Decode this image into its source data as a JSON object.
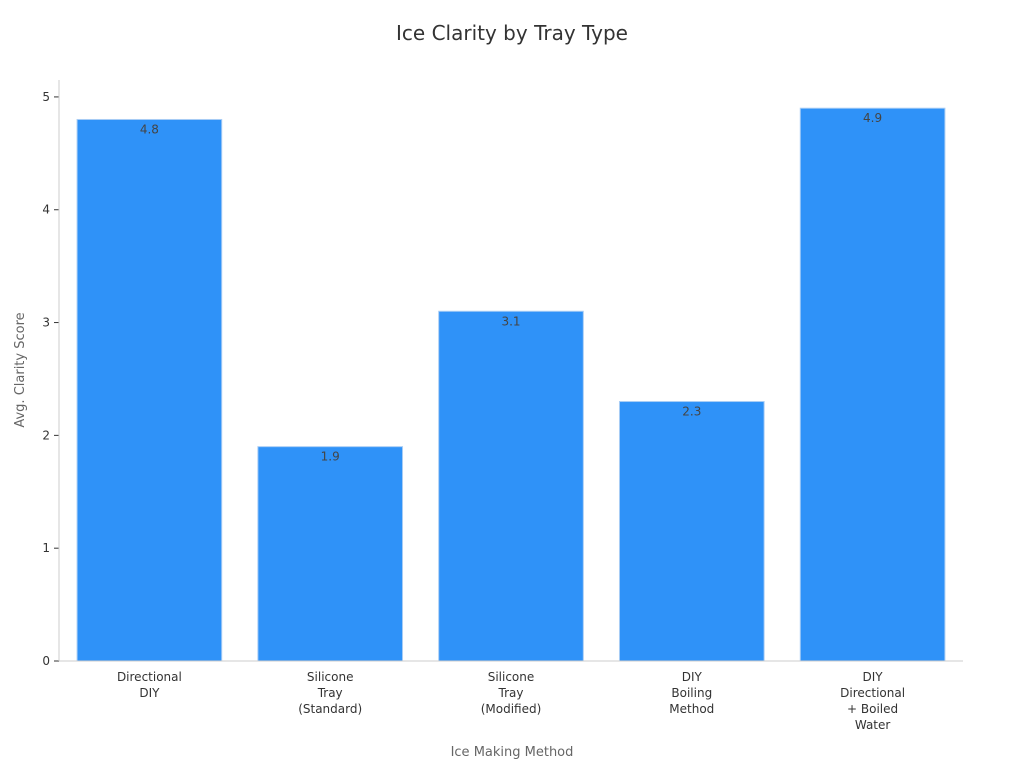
{
  "chart_data": {
    "type": "bar",
    "title": "Ice Clarity by Tray Type",
    "xlabel": "Ice Making Method",
    "ylabel": "Avg. Clarity Score",
    "categories": [
      [
        "Directional",
        "DIY"
      ],
      [
        "Silicone",
        "Tray",
        "(Standard)"
      ],
      [
        "Silicone",
        "Tray",
        "(Modified)"
      ],
      [
        "DIY",
        "Boiling",
        "Method"
      ],
      [
        "DIY",
        "Directional",
        "+ Boiled",
        "Water"
      ]
    ],
    "values": [
      4.8,
      1.9,
      3.1,
      2.3,
      4.9
    ],
    "data_labels": [
      "4.8",
      "1.9",
      "3.1",
      "2.3",
      "4.9"
    ],
    "ylim": [
      0,
      5.15
    ],
    "yticks": [
      0,
      1,
      2,
      3,
      4,
      5
    ],
    "grid": false,
    "bar_color": "#2f92f8"
  }
}
